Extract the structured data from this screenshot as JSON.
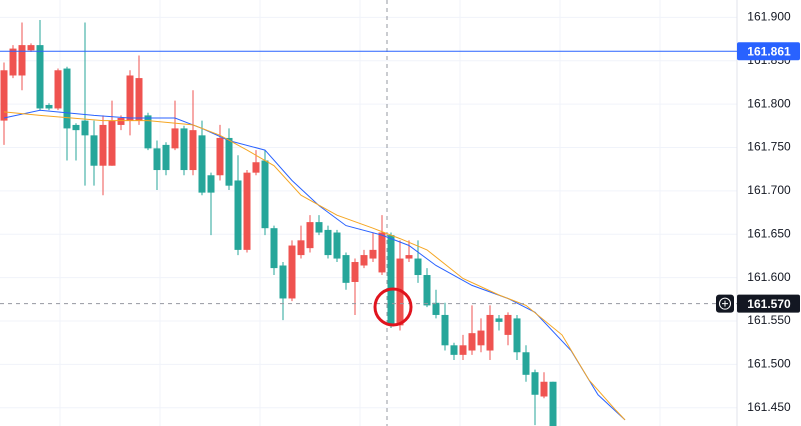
{
  "chart_data": {
    "type": "candlestick",
    "ylim": [
      161.429,
      161.92
    ],
    "yticks": [
      {
        "value": 161.9,
        "label": "161.900"
      },
      {
        "value": 161.85,
        "label": "161.850"
      },
      {
        "value": 161.8,
        "label": "161.800"
      },
      {
        "value": 161.75,
        "label": "161.750"
      },
      {
        "value": 161.7,
        "label": "161.700"
      },
      {
        "value": 161.65,
        "label": "161.650"
      },
      {
        "value": 161.6,
        "label": "161.600"
      },
      {
        "value": 161.55,
        "label": "161.550"
      },
      {
        "value": 161.5,
        "label": "161.500"
      },
      {
        "value": 161.45,
        "label": "161.450"
      }
    ],
    "grid": true,
    "up_color": "#ef5350",
    "down_color": "#26a69a",
    "open": [
      161.781,
      161.833,
      161.833,
      161.862,
      161.868,
      161.799,
      161.795,
      161.841,
      161.776,
      161.781,
      161.764,
      161.729,
      161.729,
      161.776,
      161.781,
      161.781,
      161.787,
      161.749,
      161.753,
      161.749,
      161.772,
      161.724,
      161.764,
      161.718,
      161.718,
      161.761,
      161.712,
      161.632,
      161.721,
      161.735,
      161.657,
      161.614,
      161.576,
      161.626,
      161.634,
      161.664,
      161.655,
      161.652,
      161.626,
      161.595,
      161.614,
      161.622,
      161.606,
      161.649,
      161.545,
      161.622,
      161.622,
      161.603,
      161.571,
      161.557,
      161.522,
      161.511,
      161.516,
      161.522,
      161.516,
      161.553,
      161.534,
      161.553,
      161.514,
      161.491,
      161.463,
      161.48,
      null,
      null,
      null,
      null,
      null,
      null,
      null,
      null,
      null
    ],
    "high": [
      161.848,
      161.868,
      161.894,
      161.87,
      161.897,
      161.801,
      161.841,
      161.843,
      161.778,
      161.894,
      161.781,
      161.787,
      161.804,
      161.787,
      161.839,
      161.856,
      161.79,
      161.758,
      161.756,
      161.804,
      161.775,
      161.816,
      161.781,
      161.721,
      161.776,
      161.772,
      161.741,
      161.724,
      161.747,
      161.747,
      161.66,
      161.618,
      161.643,
      161.66,
      161.672,
      161.672,
      161.66,
      161.655,
      161.629,
      161.622,
      161.632,
      161.652,
      161.672,
      161.652,
      161.643,
      161.643,
      161.643,
      161.611,
      161.586,
      161.571,
      161.525,
      161.534,
      161.568,
      161.553,
      161.568,
      161.557,
      161.56,
      161.557,
      161.522,
      161.494,
      161.491,
      161.48,
      null,
      null,
      null,
      null,
      null,
      null,
      null,
      null,
      null
    ],
    "low": [
      161.753,
      161.83,
      161.816,
      161.86,
      161.793,
      161.793,
      161.793,
      161.735,
      161.735,
      161.706,
      161.706,
      161.695,
      161.729,
      161.77,
      161.764,
      161.776,
      161.747,
      161.701,
      161.718,
      161.747,
      161.718,
      161.718,
      161.695,
      161.649,
      161.712,
      161.701,
      161.626,
      161.629,
      161.718,
      161.649,
      161.603,
      161.551,
      161.573,
      161.622,
      161.629,
      161.649,
      161.622,
      161.618,
      161.586,
      161.557,
      161.611,
      161.618,
      161.603,
      161.542,
      161.539,
      161.618,
      161.594,
      161.566,
      161.553,
      161.516,
      161.505,
      161.505,
      161.511,
      161.514,
      161.505,
      161.539,
      161.522,
      161.505,
      161.48,
      161.43,
      161.461,
      161.429,
      null,
      null,
      null,
      null,
      null,
      null,
      null,
      null,
      null
    ],
    "close": [
      161.839,
      161.864,
      161.868,
      161.868,
      161.795,
      161.795,
      161.839,
      161.772,
      161.77,
      161.764,
      161.729,
      161.776,
      161.781,
      161.784,
      161.833,
      161.83,
      161.749,
      161.724,
      161.724,
      161.772,
      161.724,
      161.77,
      161.698,
      161.698,
      161.761,
      161.706,
      161.632,
      161.721,
      161.733,
      161.657,
      161.611,
      161.576,
      161.637,
      161.643,
      161.664,
      161.652,
      161.626,
      161.622,
      161.594,
      161.618,
      161.626,
      161.632,
      161.652,
      161.545,
      161.622,
      161.626,
      161.603,
      161.568,
      161.557,
      161.522,
      161.511,
      161.522,
      161.536,
      161.539,
      161.557,
      161.549,
      161.557,
      161.514,
      161.488,
      161.465,
      161.48,
      161.429,
      null,
      null,
      null,
      null,
      null,
      null,
      null,
      null,
      null
    ],
    "series": [
      {
        "color": "#2962ff",
        "x": [
          0,
          4,
          10,
          14,
          19,
          22,
          25,
          29,
          32,
          35,
          38,
          42,
          45,
          48,
          52,
          56,
          59,
          63,
          66,
          69
        ],
        "values": [
          161.784,
          161.793,
          161.787,
          161.784,
          161.784,
          161.772,
          161.758,
          161.747,
          161.712,
          161.683,
          161.66,
          161.649,
          161.637,
          161.614,
          161.591,
          161.576,
          161.56,
          161.516,
          161.465,
          161.436
        ]
      },
      {
        "color": "#f5a623",
        "x": [
          0,
          4,
          11,
          16,
          21,
          24,
          27,
          30,
          33,
          37,
          41,
          44,
          47,
          51,
          55,
          58,
          62,
          65,
          68,
          69
        ],
        "values": [
          161.791,
          161.787,
          161.781,
          161.781,
          161.776,
          161.764,
          161.747,
          161.729,
          161.695,
          161.672,
          161.657,
          161.645,
          161.632,
          161.599,
          161.58,
          161.568,
          161.534,
          161.482,
          161.447,
          161.436
        ]
      }
    ],
    "price_line": {
      "value": 161.861,
      "label": "161.861",
      "color": "#2962ff"
    },
    "crosshair": {
      "value": 161.57,
      "label": "161.570"
    }
  }
}
